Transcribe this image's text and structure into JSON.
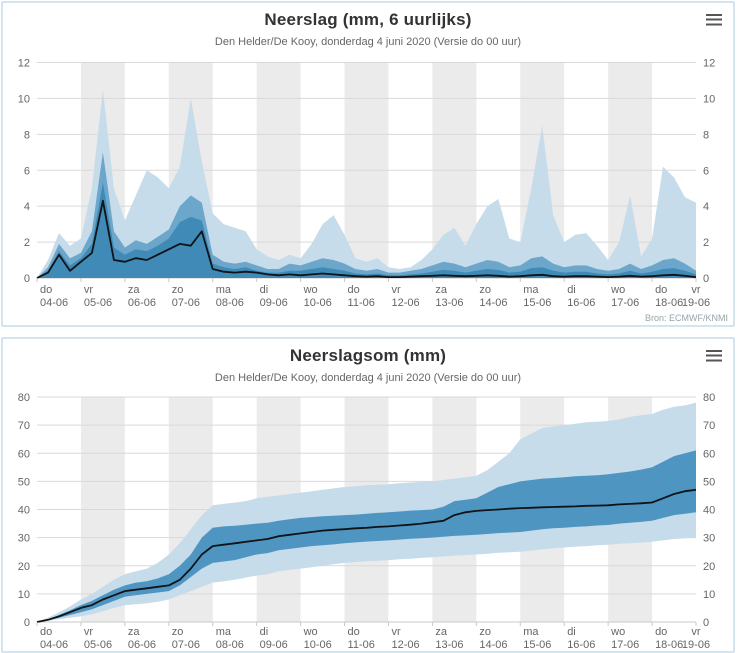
{
  "page": {
    "background": "#ffffff"
  },
  "colors": {
    "panel_border": "#d3e6f0",
    "stripe": "#ebebeb",
    "grid": "#d9d9d9",
    "axis_line": "#c9c9c9",
    "axis_text": "#666666",
    "title_text": "#333333",
    "band_light": "#c7dcea",
    "band_medium": "#6ca7cb",
    "band_dark": "#3f8ab6",
    "band_inner_cumulative": "#4e96c1",
    "control_line": "#101418"
  },
  "chart_data": [
    {
      "type": "area",
      "title": "Neerslag (mm, 6 uurlijks)",
      "subtitle": "Den Helder/De Kooy, donderdag 4 juni 2020 (Versie do 00 uur)",
      "source": "Bron: ECMWF/KNMI",
      "menu_icon": "menu-icon",
      "xlabel": "",
      "ylabel": "",
      "x_step_hours": 6,
      "ylim": [
        0,
        12
      ],
      "ytick_step": 2,
      "grid": true,
      "legend_position": "none",
      "days": [
        {
          "name": "do",
          "date": "04-06"
        },
        {
          "name": "vr",
          "date": "05-06"
        },
        {
          "name": "za",
          "date": "06-06"
        },
        {
          "name": "zo",
          "date": "07-06"
        },
        {
          "name": "ma",
          "date": "08-06"
        },
        {
          "name": "di",
          "date": "09-06"
        },
        {
          "name": "wo",
          "date": "10-06"
        },
        {
          "name": "do",
          "date": "11-06"
        },
        {
          "name": "vr",
          "date": "12-06"
        },
        {
          "name": "za",
          "date": "13-06"
        },
        {
          "name": "zo",
          "date": "14-06"
        },
        {
          "name": "ma",
          "date": "15-06"
        },
        {
          "name": "di",
          "date": "16-06"
        },
        {
          "name": "wo",
          "date": "17-06"
        },
        {
          "name": "do",
          "date": "18-06"
        },
        {
          "name": "vr",
          "date": "19-06"
        }
      ],
      "series": [
        {
          "name": "band-outer",
          "color": "#c7dcea",
          "upper": [
            0,
            1,
            2.5,
            1.8,
            2.2,
            5,
            10.5,
            5,
            3.2,
            4.6,
            6,
            5.6,
            5,
            6.2,
            10,
            6.5,
            3.6,
            3,
            2.8,
            2.6,
            1.6,
            1.2,
            1,
            1.3,
            1.1,
            1.9,
            3,
            3.5,
            2.4,
            1.1,
            0.9,
            1.1,
            0.6,
            0.5,
            0.6,
            1,
            1.6,
            2.4,
            2.8,
            1.8,
            3,
            4,
            4.4,
            2.2,
            2,
            5,
            8.5,
            3.5,
            2,
            2.4,
            2.5,
            1.8,
            1,
            2,
            4.6,
            1.2,
            2.2,
            6.2,
            5.6,
            4.5,
            4.2
          ]
        },
        {
          "name": "band-middle",
          "color": "#6ca7cb",
          "upper": [
            0,
            0.6,
            1.9,
            1.1,
            1.4,
            2.6,
            7,
            2.6,
            1.7,
            2.1,
            1.9,
            2.3,
            2.7,
            4,
            4.6,
            4.2,
            1.3,
            0.9,
            0.8,
            0.9,
            0.7,
            0.5,
            0.5,
            0.8,
            0.7,
            0.9,
            1.1,
            1,
            0.8,
            0.5,
            0.4,
            0.5,
            0.3,
            0.3,
            0.4,
            0.5,
            0.7,
            0.9,
            0.8,
            0.6,
            0.8,
            1,
            0.9,
            0.6,
            0.7,
            1.1,
            1.2,
            0.8,
            0.6,
            0.7,
            0.7,
            0.5,
            0.4,
            0.5,
            0.8,
            0.5,
            0.7,
            1,
            1.1,
            0.8,
            0.4
          ]
        },
        {
          "name": "band-inner",
          "color": "#3f8ab6",
          "upper": [
            0,
            0.4,
            1.5,
            0.7,
            1.1,
            1.9,
            5.3,
            1.7,
            1.3,
            1.6,
            1.5,
            1.8,
            2.2,
            3.1,
            3.4,
            3.2,
            0.8,
            0.6,
            0.5,
            0.6,
            0.4,
            0.3,
            0.3,
            0.4,
            0.4,
            0.5,
            0.6,
            0.5,
            0.4,
            0.25,
            0.2,
            0.25,
            0.15,
            0.15,
            0.2,
            0.25,
            0.35,
            0.45,
            0.4,
            0.3,
            0.4,
            0.5,
            0.45,
            0.3,
            0.35,
            0.55,
            0.6,
            0.4,
            0.3,
            0.35,
            0.35,
            0.25,
            0.2,
            0.25,
            0.4,
            0.25,
            0.35,
            0.5,
            0.55,
            0.4,
            0.2
          ]
        },
        {
          "name": "control-line",
          "type": "line",
          "color": "#101418",
          "values": [
            0,
            0.3,
            1.3,
            0.4,
            0.9,
            1.4,
            4.3,
            1,
            0.9,
            1.1,
            1,
            1.3,
            1.6,
            1.9,
            1.8,
            2.6,
            0.5,
            0.35,
            0.3,
            0.35,
            0.3,
            0.2,
            0.15,
            0.2,
            0.15,
            0.2,
            0.25,
            0.2,
            0.15,
            0.1,
            0.08,
            0.1,
            0.05,
            0.05,
            0.08,
            0.1,
            0.12,
            0.15,
            0.12,
            0.1,
            0.12,
            0.15,
            0.12,
            0.08,
            0.1,
            0.15,
            0.18,
            0.1,
            0.08,
            0.1,
            0.1,
            0.08,
            0.05,
            0.08,
            0.12,
            0.08,
            0.1,
            0.15,
            0.18,
            0.12,
            0.05
          ]
        }
      ]
    },
    {
      "type": "area",
      "title": "Neerslagsom (mm)",
      "subtitle": "Den Helder/De Kooy, donderdag 4 juni 2020 (Versie do 00 uur)",
      "menu_icon": "menu-icon",
      "xlabel": "",
      "ylabel": "",
      "x_step_hours": 6,
      "ylim": [
        0,
        80
      ],
      "ytick_step": 10,
      "grid": true,
      "legend_position": "none",
      "days": [
        {
          "name": "do",
          "date": "04-06"
        },
        {
          "name": "vr",
          "date": "05-06"
        },
        {
          "name": "za",
          "date": "06-06"
        },
        {
          "name": "zo",
          "date": "07-06"
        },
        {
          "name": "ma",
          "date": "08-06"
        },
        {
          "name": "di",
          "date": "09-06"
        },
        {
          "name": "wo",
          "date": "10-06"
        },
        {
          "name": "do",
          "date": "11-06"
        },
        {
          "name": "vr",
          "date": "12-06"
        },
        {
          "name": "za",
          "date": "13-06"
        },
        {
          "name": "zo",
          "date": "14-06"
        },
        {
          "name": "ma",
          "date": "15-06"
        },
        {
          "name": "di",
          "date": "16-06"
        },
        {
          "name": "wo",
          "date": "17-06"
        },
        {
          "name": "do",
          "date": "18-06"
        },
        {
          "name": "vr",
          "date": "19-06"
        }
      ],
      "series": [
        {
          "name": "band-outer",
          "color": "#c7dcea",
          "upper": [
            0,
            1.5,
            3.5,
            5.5,
            8,
            10,
            12.5,
            15,
            17,
            18,
            19,
            21,
            24,
            28,
            33,
            38,
            41.5,
            42,
            42.5,
            43,
            44,
            44.5,
            45,
            45.5,
            46,
            46.5,
            47,
            47.5,
            48,
            48.3,
            48.6,
            48.8,
            49,
            49.3,
            49.6,
            49.8,
            50,
            50.5,
            51,
            51.5,
            52,
            54,
            57,
            60,
            65,
            67,
            69,
            69.5,
            70,
            70.5,
            71,
            71.2,
            71.5,
            72,
            73,
            73.5,
            74,
            75.5,
            76.5,
            77,
            78
          ],
          "lower": [
            0,
            0.4,
            1,
            1.5,
            2,
            2.8,
            3.8,
            5,
            6,
            6.3,
            6.6,
            7.2,
            8,
            9.5,
            11,
            12.5,
            14,
            14.5,
            15,
            15.8,
            16.5,
            17,
            18,
            18.5,
            19,
            19.5,
            20,
            20.5,
            21,
            21.3,
            21.6,
            21.8,
            22,
            22.3,
            22.5,
            22.8,
            23,
            23.3,
            23.6,
            23.8,
            24,
            24.3,
            24.6,
            24.8,
            25,
            25.4,
            25.8,
            26.2,
            26.5,
            26.8,
            27,
            27.3,
            27.5,
            27.8,
            28,
            28.2,
            28.5,
            29,
            29.5,
            29.8,
            30
          ]
        },
        {
          "name": "band-inner",
          "color": "#4e96c1",
          "upper": [
            0,
            1,
            2.5,
            4.2,
            6,
            7.5,
            9.5,
            11.5,
            13,
            14,
            14.5,
            15.5,
            17,
            20,
            24,
            30,
            33.5,
            34,
            34.2,
            34.6,
            35,
            35.3,
            36,
            36.5,
            37,
            37.3,
            37.6,
            37.8,
            38,
            38.2,
            38.5,
            38.8,
            39,
            39.3,
            39.6,
            39.8,
            40,
            41,
            43,
            43.5,
            44,
            46,
            48,
            49,
            50,
            50.5,
            51,
            51.2,
            51.5,
            51.8,
            52,
            52.2,
            52.5,
            53,
            53.5,
            54.2,
            55,
            57,
            59,
            60,
            61
          ],
          "lower": [
            0,
            0.6,
            1.5,
            2.5,
            3.5,
            4.5,
            6,
            7.5,
            9,
            9.5,
            10,
            10.5,
            11,
            13,
            16,
            19,
            21,
            21.5,
            22,
            23,
            24,
            24.5,
            25.5,
            26,
            26.5,
            27,
            27.3,
            27.6,
            28,
            28.3,
            28.6,
            28.8,
            29,
            29.3,
            29.6,
            29.8,
            30,
            30.3,
            30.6,
            30.8,
            31,
            31.3,
            31.6,
            31.8,
            32,
            32.5,
            33,
            33.3,
            33.5,
            33.8,
            34,
            34.3,
            34.5,
            35,
            35.3,
            35.6,
            36,
            37,
            38,
            38.5,
            39
          ]
        },
        {
          "name": "control-line",
          "type": "line",
          "color": "#101418",
          "values": [
            0,
            0.8,
            2,
            3.5,
            5,
            6,
            8,
            9.5,
            11,
            11.5,
            12,
            12.5,
            13,
            15,
            19,
            24,
            27,
            27.5,
            28,
            28.5,
            29,
            29.5,
            30.5,
            31,
            31.5,
            32,
            32.5,
            32.8,
            33,
            33.3,
            33.5,
            33.8,
            34,
            34.3,
            34.6,
            35,
            35.5,
            36,
            38,
            39,
            39.5,
            39.8,
            40,
            40.3,
            40.5,
            40.6,
            40.8,
            40.9,
            41,
            41.1,
            41.3,
            41.4,
            41.5,
            41.8,
            42,
            42.2,
            42.5,
            44,
            45.5,
            46.5,
            47
          ]
        }
      ]
    }
  ]
}
